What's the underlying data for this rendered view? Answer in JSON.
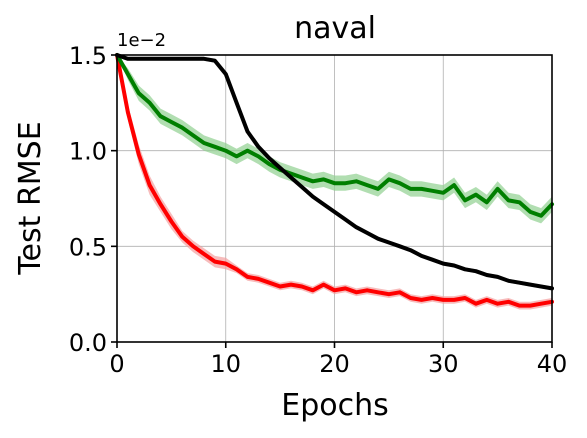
{
  "chart_data": {
    "type": "line",
    "title": "naval",
    "xlabel": "Epochs",
    "ylabel": "Test RMSE",
    "y_offset_label": "1e−2",
    "xlim": [
      0,
      40
    ],
    "ylim": [
      0.0,
      1.5
    ],
    "x_ticks": [
      0,
      10,
      20,
      30,
      40
    ],
    "x_tick_labels": [
      "0",
      "10",
      "20",
      "30",
      "40"
    ],
    "y_ticks": [
      0.0,
      0.5,
      1.0,
      1.5
    ],
    "y_tick_labels": [
      "0.0",
      "0.5",
      "1.0",
      "1.5"
    ],
    "grid": true,
    "legend": "none",
    "series": [
      {
        "color": "#ff0000",
        "band_color": "#f4a0a0",
        "x": [
          0,
          1,
          2,
          3,
          4,
          5,
          6,
          7,
          8,
          9,
          10,
          11,
          12,
          13,
          14,
          15,
          16,
          17,
          18,
          19,
          20,
          21,
          22,
          23,
          24,
          25,
          26,
          27,
          28,
          29,
          30,
          31,
          32,
          33,
          34,
          35,
          36,
          37,
          38,
          39,
          40
        ],
        "y": [
          1.5,
          1.2,
          0.98,
          0.82,
          0.72,
          0.63,
          0.55,
          0.5,
          0.46,
          0.42,
          0.41,
          0.38,
          0.34,
          0.33,
          0.31,
          0.29,
          0.3,
          0.29,
          0.27,
          0.3,
          0.27,
          0.28,
          0.26,
          0.27,
          0.26,
          0.25,
          0.26,
          0.23,
          0.22,
          0.23,
          0.22,
          0.22,
          0.23,
          0.2,
          0.22,
          0.2,
          0.21,
          0.19,
          0.19,
          0.2,
          0.21
        ],
        "band": [
          0.0,
          0.04,
          0.05,
          0.05,
          0.04,
          0.04,
          0.03,
          0.03,
          0.03,
          0.03,
          0.03,
          0.02,
          0.02,
          0.02,
          0.02,
          0.02,
          0.02,
          0.02,
          0.02,
          0.02,
          0.02,
          0.02,
          0.02,
          0.02,
          0.02,
          0.02,
          0.02,
          0.02,
          0.02,
          0.02,
          0.02,
          0.02,
          0.02,
          0.02,
          0.02,
          0.02,
          0.02,
          0.02,
          0.02,
          0.02,
          0.02
        ]
      },
      {
        "color": "#007f00",
        "band_color": "#90d090",
        "x": [
          0,
          1,
          2,
          3,
          4,
          5,
          6,
          7,
          8,
          9,
          10,
          11,
          12,
          13,
          14,
          15,
          16,
          17,
          18,
          19,
          20,
          21,
          22,
          23,
          24,
          25,
          26,
          27,
          28,
          29,
          30,
          31,
          32,
          33,
          34,
          35,
          36,
          37,
          38,
          39,
          40
        ],
        "y": [
          1.5,
          1.4,
          1.3,
          1.25,
          1.18,
          1.15,
          1.12,
          1.08,
          1.04,
          1.02,
          1.0,
          0.97,
          1.0,
          0.97,
          0.93,
          0.9,
          0.88,
          0.86,
          0.84,
          0.85,
          0.83,
          0.83,
          0.84,
          0.82,
          0.8,
          0.85,
          0.83,
          0.8,
          0.8,
          0.79,
          0.78,
          0.82,
          0.74,
          0.77,
          0.73,
          0.8,
          0.74,
          0.73,
          0.68,
          0.66,
          0.72
        ],
        "band": [
          0.0,
          0.03,
          0.04,
          0.04,
          0.04,
          0.04,
          0.04,
          0.04,
          0.04,
          0.04,
          0.04,
          0.04,
          0.04,
          0.04,
          0.04,
          0.04,
          0.04,
          0.04,
          0.04,
          0.04,
          0.04,
          0.04,
          0.04,
          0.04,
          0.04,
          0.04,
          0.04,
          0.04,
          0.04,
          0.04,
          0.04,
          0.04,
          0.04,
          0.04,
          0.04,
          0.04,
          0.04,
          0.04,
          0.04,
          0.04,
          0.04
        ]
      },
      {
        "color": "#000000",
        "band_color": "#a0a0a0",
        "x": [
          0,
          1,
          2,
          3,
          4,
          5,
          6,
          7,
          8,
          9,
          10,
          11,
          12,
          13,
          14,
          15,
          16,
          17,
          18,
          19,
          20,
          21,
          22,
          23,
          24,
          25,
          26,
          27,
          28,
          29,
          30,
          31,
          32,
          33,
          34,
          35,
          36,
          37,
          38,
          39,
          40
        ],
        "y": [
          1.5,
          1.48,
          1.48,
          1.48,
          1.48,
          1.48,
          1.48,
          1.48,
          1.48,
          1.47,
          1.4,
          1.25,
          1.1,
          1.02,
          0.96,
          0.91,
          0.86,
          0.81,
          0.76,
          0.72,
          0.68,
          0.64,
          0.6,
          0.57,
          0.54,
          0.52,
          0.5,
          0.48,
          0.45,
          0.43,
          0.41,
          0.4,
          0.38,
          0.37,
          0.35,
          0.34,
          0.32,
          0.31,
          0.3,
          0.29,
          0.28
        ],
        "band": [
          0.0,
          0.01,
          0.01,
          0.01,
          0.01,
          0.01,
          0.01,
          0.01,
          0.01,
          0.01,
          0.01,
          0.01,
          0.01,
          0.01,
          0.01,
          0.01,
          0.01,
          0.01,
          0.01,
          0.01,
          0.01,
          0.01,
          0.01,
          0.01,
          0.01,
          0.01,
          0.01,
          0.01,
          0.01,
          0.01,
          0.01,
          0.01,
          0.01,
          0.01,
          0.01,
          0.01,
          0.01,
          0.01,
          0.01,
          0.01,
          0.01
        ]
      }
    ]
  }
}
